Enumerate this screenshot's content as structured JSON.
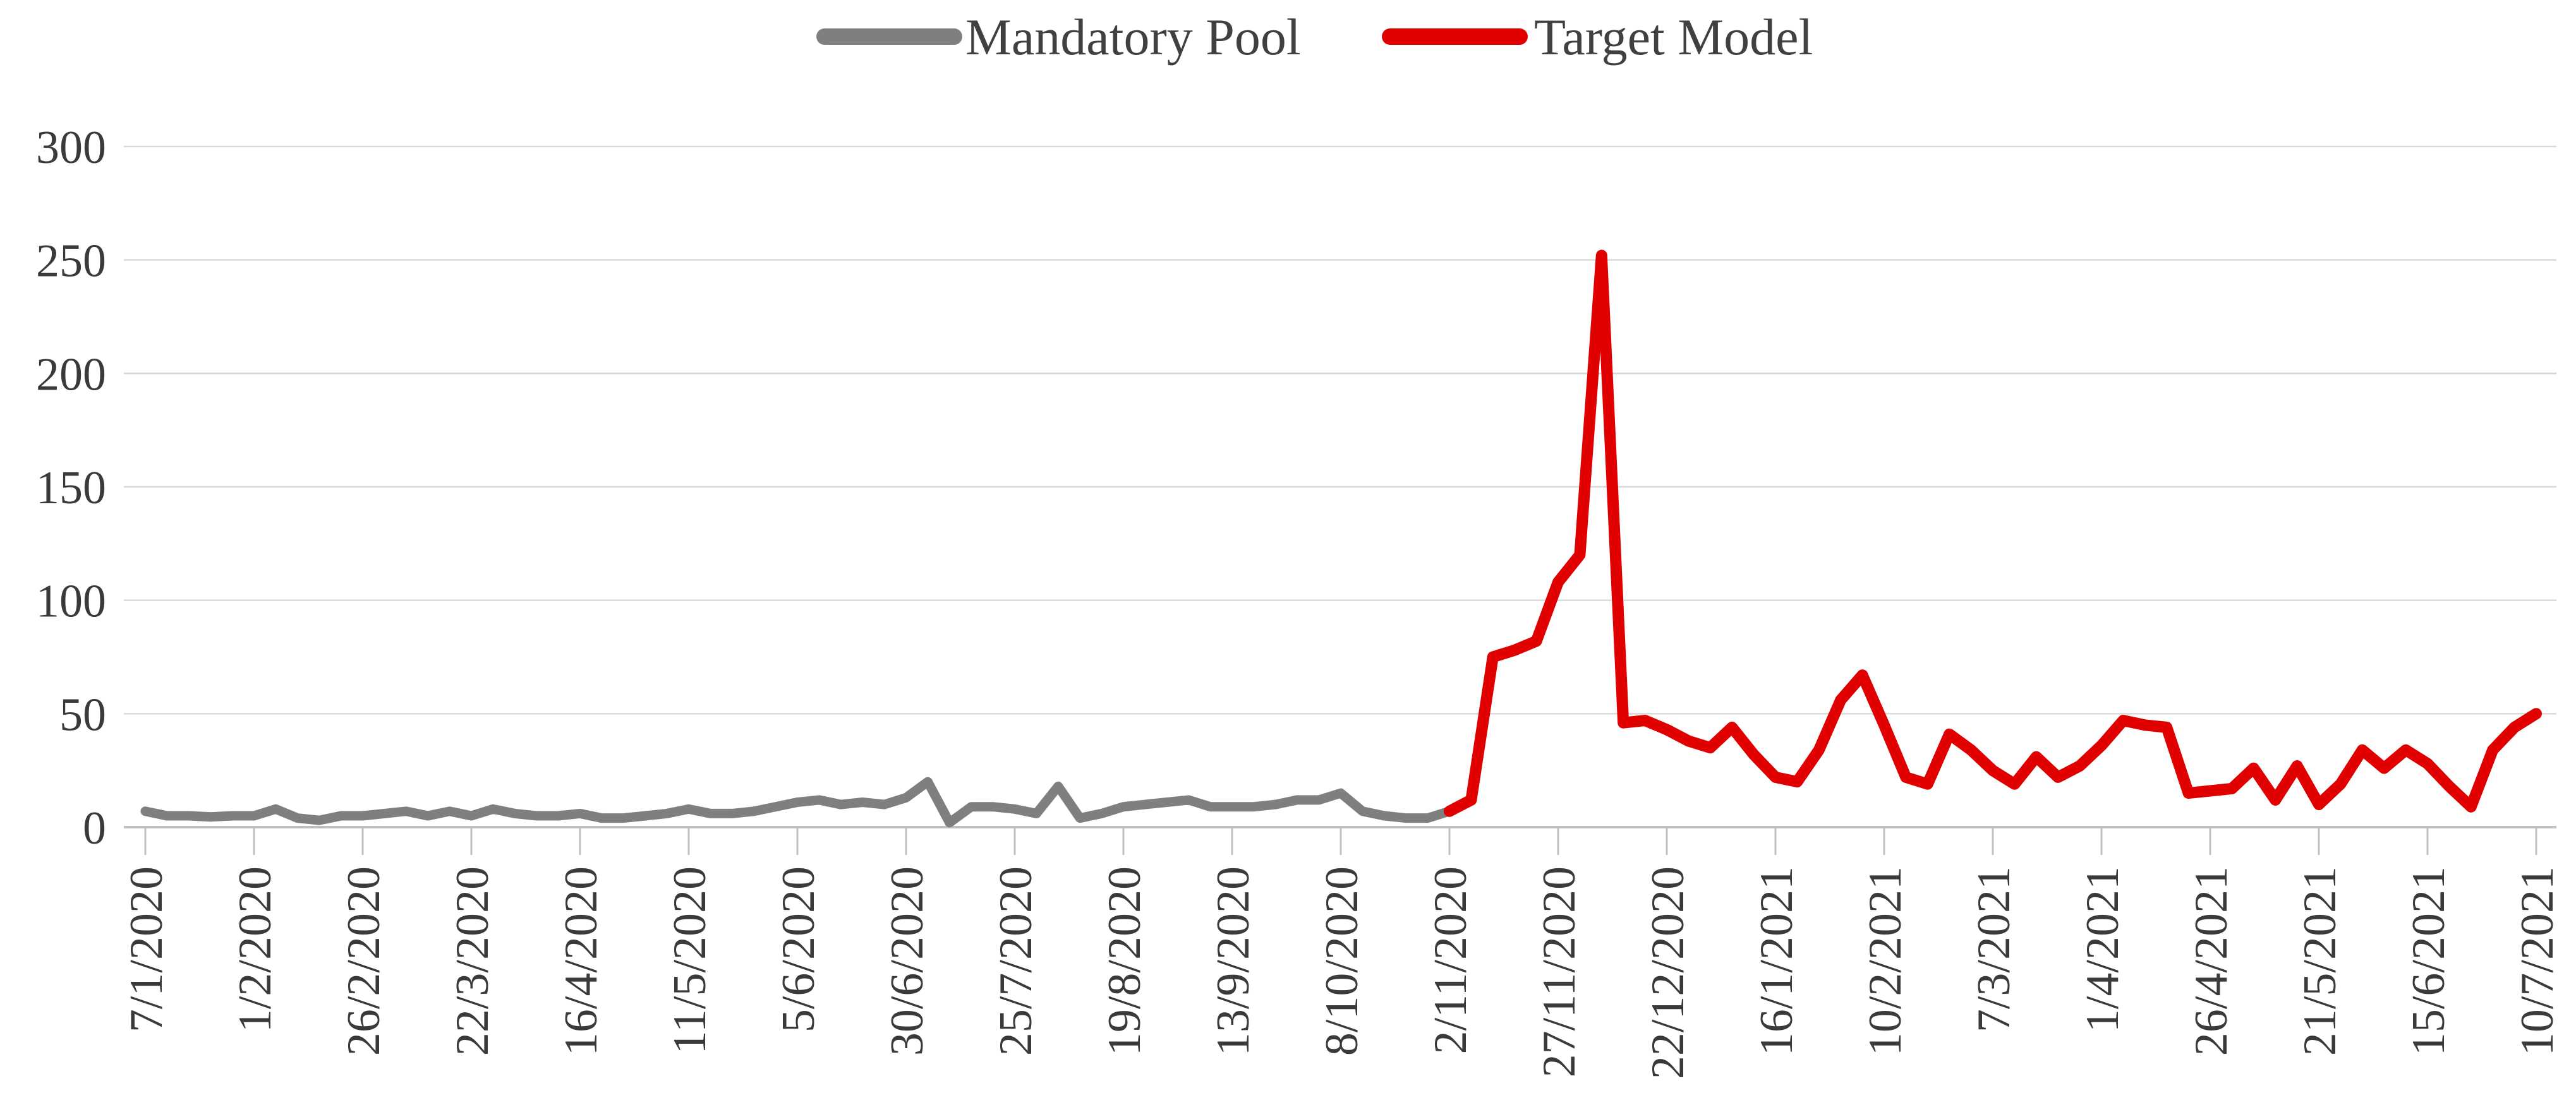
{
  "chart_data": {
    "type": "line",
    "title": "",
    "xlabel": "",
    "ylabel": "",
    "ylim": [
      0,
      300
    ],
    "yticks": [
      0,
      50,
      100,
      150,
      200,
      250,
      300
    ],
    "grid": true,
    "legend_position": "top-center",
    "x_tick_labels": [
      "7/1/2020",
      "1/2/2020",
      "26/2/2020",
      "22/3/2020",
      "16/4/2020",
      "11/5/2020",
      "5/6/2020",
      "30/6/2020",
      "25/7/2020",
      "19/8/2020",
      "13/9/2020",
      "8/10/2020",
      "2/11/2020",
      "27/11/2020",
      "22/12/2020",
      "16/1/2021",
      "10/2/2021",
      "7/3/2021",
      "1/4/2021",
      "26/4/2021",
      "21/5/2021",
      "15/6/2021",
      "10/7/2021"
    ],
    "x_points_per_tick_interval": 5,
    "x_point_interval_days": 5,
    "series": [
      {
        "name": "Mandatory Pool",
        "color": "#7f7f7f",
        "start_point_index": 0,
        "values": [
          7,
          5,
          5,
          4.5,
          5,
          5,
          8,
          4,
          3,
          5,
          5,
          6,
          7,
          5,
          7,
          5,
          8,
          6,
          5,
          5,
          6,
          4,
          4,
          5,
          6,
          8,
          6,
          6,
          7,
          9,
          11,
          12,
          10,
          11,
          10,
          13,
          20,
          2,
          9,
          9,
          8,
          6,
          18,
          4,
          6,
          9,
          10,
          11,
          12,
          9,
          9,
          9,
          10,
          12,
          12,
          15,
          7,
          5,
          4,
          4,
          7
        ]
      },
      {
        "name": "Target Model",
        "color": "#e10000",
        "start_point_index": 60,
        "values": [
          7,
          12,
          75,
          78,
          82,
          108,
          120,
          252,
          46,
          47,
          43,
          38,
          35,
          44,
          32,
          22,
          20,
          34,
          56,
          67,
          45,
          22,
          19,
          41,
          34,
          25,
          19,
          31,
          22,
          27,
          36,
          47,
          45,
          44,
          15,
          16,
          17,
          26,
          12,
          27,
          10,
          19,
          34,
          26,
          34,
          28,
          18,
          9,
          34,
          44,
          50
        ]
      }
    ]
  },
  "legend": {
    "items": [
      {
        "label": "Mandatory Pool",
        "color": "#7f7f7f"
      },
      {
        "label": "Target Model",
        "color": "#e10000"
      }
    ]
  },
  "colors": {
    "background": "#ffffff",
    "gridline": "#d9d9d9",
    "axis_line": "#bfbfbf",
    "tick_mark": "#bfbfbf",
    "axis_text": "#3a3a3a",
    "legend_text": "#404040",
    "series_gray": "#7f7f7f",
    "series_red": "#e10000"
  }
}
